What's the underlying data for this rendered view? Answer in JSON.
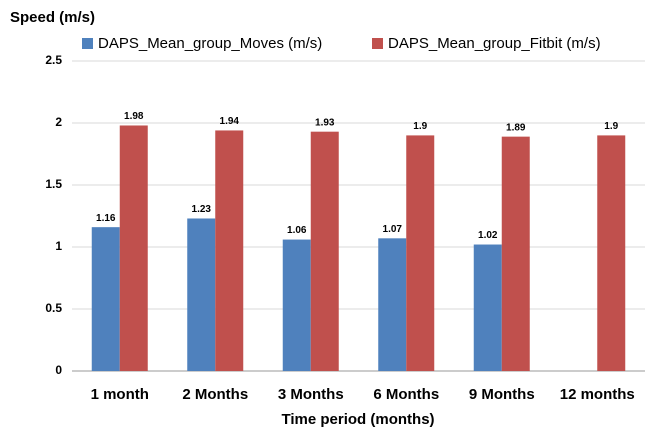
{
  "chart_data": {
    "type": "bar",
    "y_label": "Speed (m/s)",
    "x_label": "Time period (months)",
    "categories": [
      "1 month",
      "2 Months",
      "3 Months",
      "6 Months",
      "9 Months",
      "12 months"
    ],
    "series": [
      {
        "name": "DAPS_Mean_group_Moves (m/s)",
        "color": "#4f81bd",
        "values": [
          1.16,
          1.23,
          1.06,
          1.07,
          1.02,
          null
        ]
      },
      {
        "name": "DAPS_Mean_group_Fitbit (m/s)",
        "color": "#c0504d",
        "values": [
          1.98,
          1.94,
          1.93,
          1.9,
          1.89,
          1.9
        ]
      }
    ],
    "ylim": [
      0,
      2.5
    ],
    "yticks": [
      0,
      0.5,
      1,
      1.5,
      2,
      2.5
    ],
    "grid": true,
    "legend": "top"
  }
}
